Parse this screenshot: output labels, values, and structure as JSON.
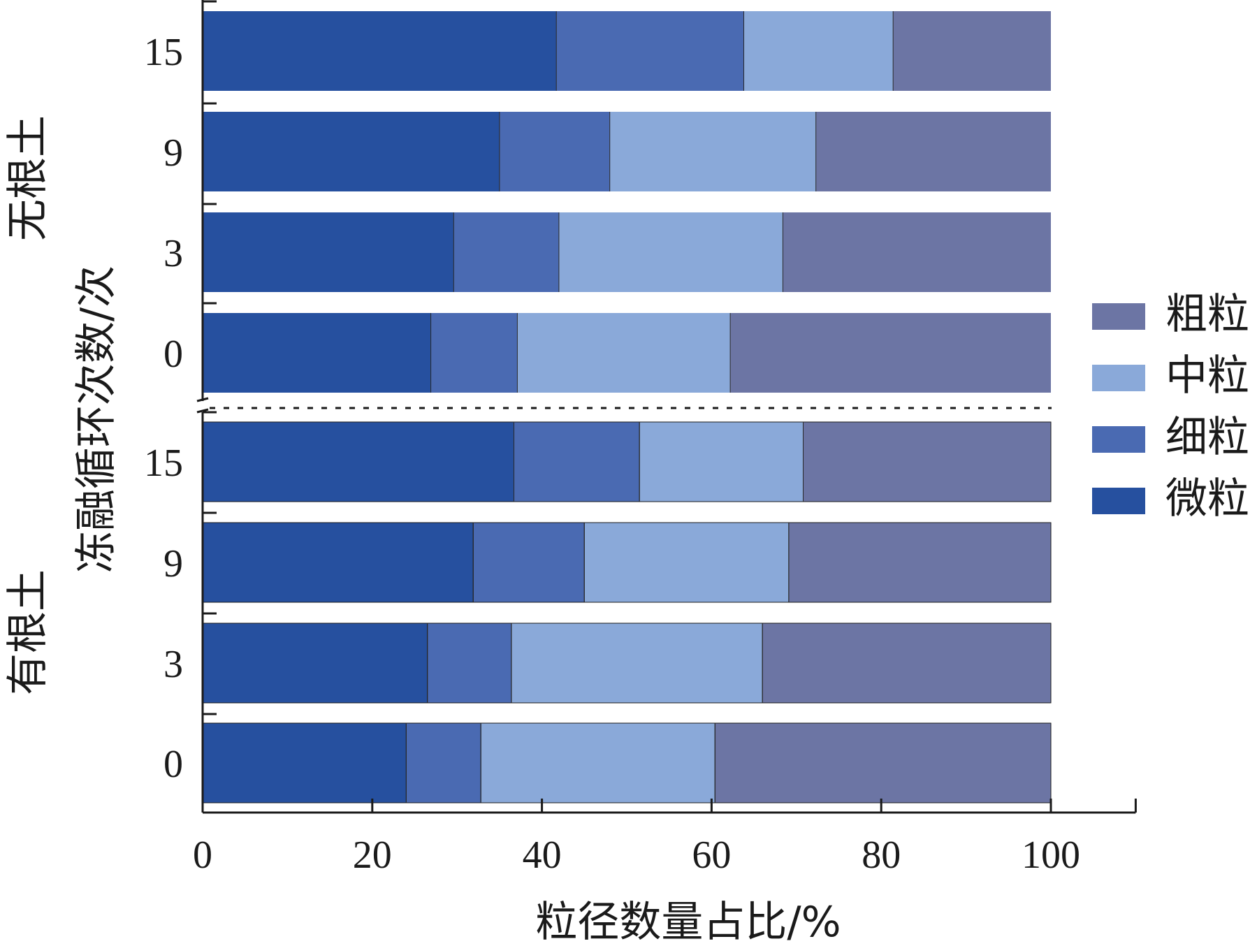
{
  "chart_data": {
    "type": "bar",
    "orientation": "horizontal",
    "stacked": true,
    "xlabel": "粒径数量占比/%",
    "ylabel": "冻融循环次数/次",
    "xlim": [
      0,
      110
    ],
    "xticks": [
      0,
      20,
      40,
      60,
      80,
      100
    ],
    "groups": [
      {
        "label": "无根土",
        "categories": [
          "15",
          "9",
          "3",
          "0"
        ]
      },
      {
        "label": "有根土",
        "categories": [
          "15",
          "9",
          "3",
          "0"
        ]
      }
    ],
    "legend_position": "right",
    "grid": false,
    "series": [
      {
        "name": "微粒",
        "color": "#26509f",
        "values": {
          "无根土": [
            41.7,
            35.0,
            29.6,
            26.9
          ],
          "有根土": [
            36.7,
            31.9,
            26.5,
            24.0
          ]
        }
      },
      {
        "name": "细粒",
        "color": "#4a6ab2",
        "values": {
          "无根土": [
            22.1,
            13.0,
            12.4,
            10.2
          ],
          "有根土": [
            14.8,
            13.1,
            9.9,
            8.8
          ]
        }
      },
      {
        "name": "中粒",
        "color": "#8aa9d9",
        "values": {
          "无根土": [
            17.6,
            24.3,
            26.4,
            25.1
          ],
          "有根土": [
            19.3,
            24.1,
            29.6,
            27.6
          ]
        }
      },
      {
        "name": "粗粒",
        "color": "#6c75a4",
        "values": {
          "无根土": [
            18.6,
            27.7,
            31.6,
            37.8
          ],
          "有根土": [
            29.2,
            30.9,
            34.0,
            39.6
          ]
        }
      }
    ]
  }
}
